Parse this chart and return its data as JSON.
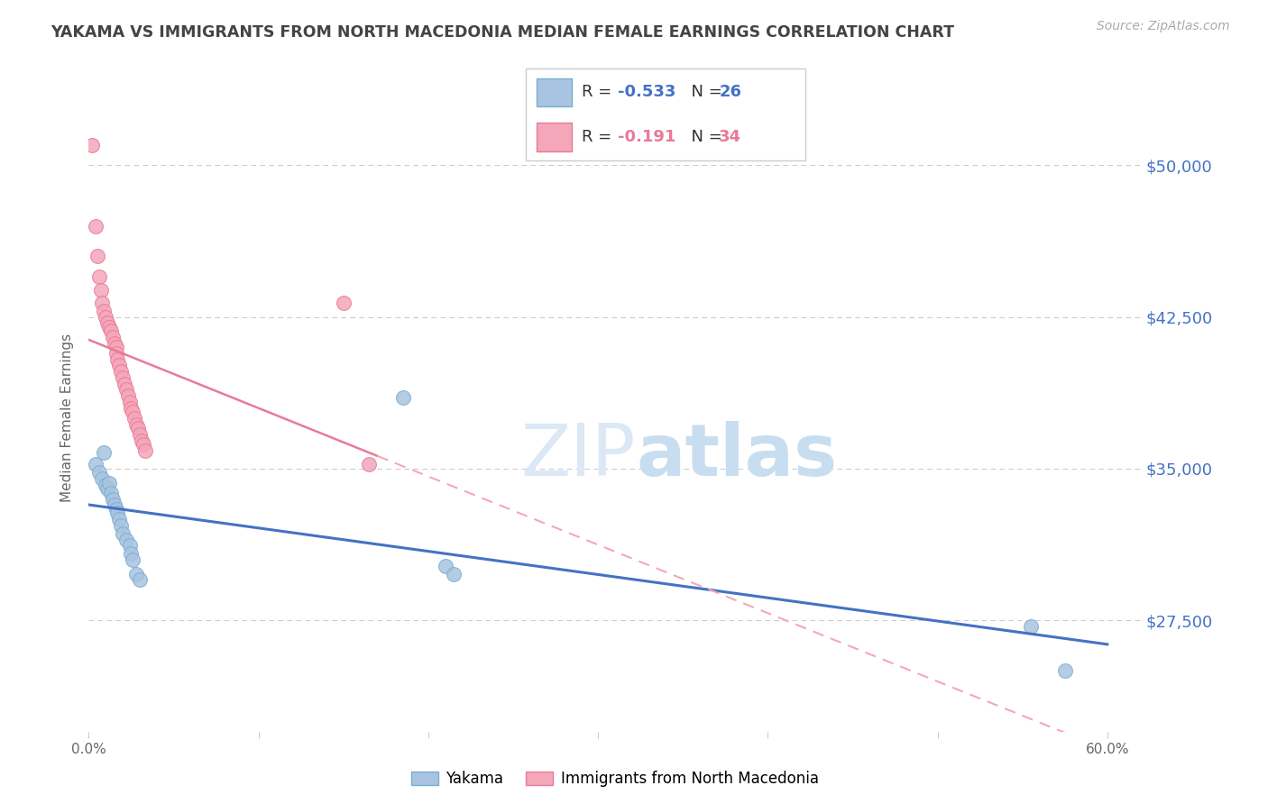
{
  "title": "YAKAMA VS IMMIGRANTS FROM NORTH MACEDONIA MEDIAN FEMALE EARNINGS CORRELATION CHART",
  "source": "Source: ZipAtlas.com",
  "ylabel": "Median Female Earnings",
  "yticks": [
    27500,
    35000,
    42500,
    50000
  ],
  "ytick_labels": [
    "$27,500",
    "$35,000",
    "$42,500",
    "$50,000"
  ],
  "ylim": [
    22000,
    53000
  ],
  "xlim": [
    0.0,
    0.62
  ],
  "watermark_zip": "ZIP",
  "watermark_atlas": "atlas",
  "legend_R1": "-0.533",
  "legend_N1": "26",
  "legend_R2": "-0.191",
  "legend_N2": "34",
  "yakama_x": [
    0.004,
    0.006,
    0.008,
    0.009,
    0.01,
    0.011,
    0.012,
    0.013,
    0.014,
    0.015,
    0.016,
    0.017,
    0.018,
    0.019,
    0.02,
    0.022,
    0.024,
    0.025,
    0.026,
    0.028,
    0.03,
    0.185,
    0.21,
    0.215,
    0.555,
    0.575
  ],
  "yakama_y": [
    35200,
    34800,
    34500,
    35800,
    34200,
    34000,
    34300,
    33800,
    33500,
    33200,
    33000,
    32800,
    32500,
    32200,
    31800,
    31500,
    31200,
    30800,
    30500,
    29800,
    29500,
    38500,
    30200,
    29800,
    27200,
    25000
  ],
  "macedonia_x": [
    0.002,
    0.004,
    0.005,
    0.006,
    0.007,
    0.008,
    0.009,
    0.01,
    0.011,
    0.012,
    0.013,
    0.014,
    0.015,
    0.016,
    0.016,
    0.017,
    0.018,
    0.019,
    0.02,
    0.021,
    0.022,
    0.023,
    0.024,
    0.025,
    0.026,
    0.027,
    0.028,
    0.029,
    0.03,
    0.031,
    0.032,
    0.033,
    0.15,
    0.165
  ],
  "macedonia_y": [
    51000,
    47000,
    45500,
    44500,
    43800,
    43200,
    42800,
    42500,
    42200,
    42000,
    41800,
    41500,
    41200,
    41000,
    40700,
    40400,
    40100,
    39800,
    39500,
    39200,
    38900,
    38600,
    38300,
    38000,
    37800,
    37500,
    37200,
    37000,
    36700,
    36400,
    36200,
    35900,
    43200,
    35200
  ],
  "yakama_color": "#a8c4e0",
  "yakama_edge": "#7aaed0",
  "macedonia_color": "#f4a7b9",
  "macedonia_edge": "#e87a9a",
  "trend_yk_color": "#4472c4",
  "trend_mk_solid_color": "#e87a9a",
  "trend_mk_dash_color": "#f4a7b9",
  "background": "#ffffff",
  "grid_color": "#cccccc",
  "title_color": "#444444",
  "ytick_color": "#4472c4",
  "source_color": "#aaaaaa"
}
